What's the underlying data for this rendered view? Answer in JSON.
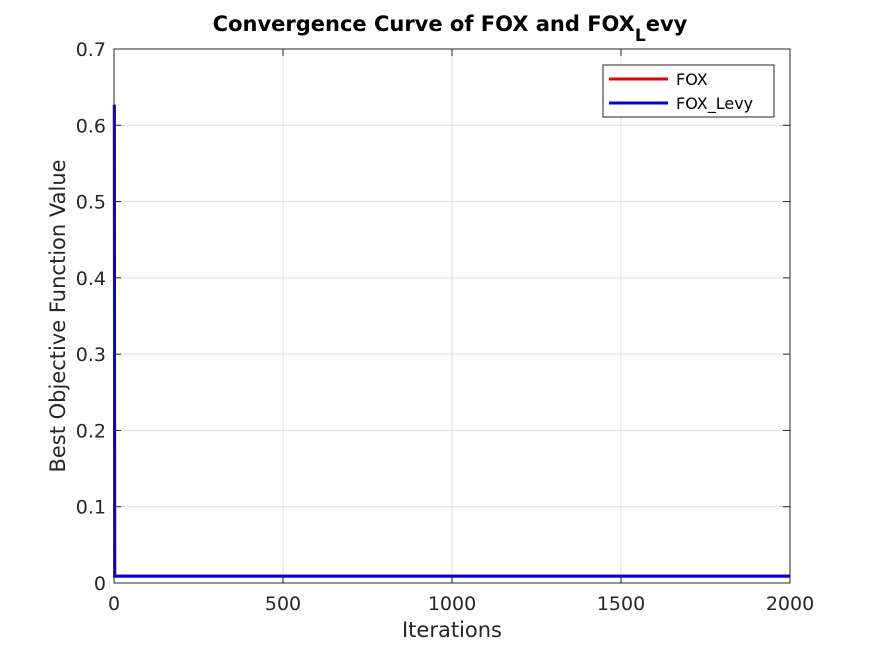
{
  "chart_data": {
    "type": "line",
    "title": "Convergence Curve of FOX and FOX",
    "title_subscript": "L",
    "title_suffix": "evy",
    "xlabel": "Iterations",
    "ylabel": "Best Objective Function Value",
    "xlim": [
      0,
      2000
    ],
    "ylim": [
      0,
      0.7
    ],
    "xticks": [
      0,
      500,
      1000,
      1500,
      2000
    ],
    "yticks": [
      0,
      0.1,
      0.2,
      0.3,
      0.4,
      0.5,
      0.6,
      0.7
    ],
    "xtick_labels": [
      "0",
      "500",
      "1000",
      "1500",
      "2000"
    ],
    "ytick_labels": [
      "0",
      "0.1",
      "0.2",
      "0.3",
      "0.4",
      "0.5",
      "0.6",
      "0.7"
    ],
    "grid": true,
    "legend_position": "top-right",
    "series": [
      {
        "name": "FOX",
        "color": "#e60000",
        "x": [
          1,
          2,
          3,
          10,
          50,
          100,
          500,
          1000,
          1500,
          2000
        ],
        "y": [
          0.627,
          0.009,
          0.009,
          0.009,
          0.009,
          0.009,
          0.009,
          0.009,
          0.009,
          0.009
        ]
      },
      {
        "name": "FOX_Levy",
        "color": "#0000e6",
        "x": [
          1,
          2,
          3,
          10,
          50,
          100,
          500,
          1000,
          1500,
          2000
        ],
        "y": [
          0.627,
          0.009,
          0.009,
          0.009,
          0.009,
          0.009,
          0.009,
          0.009,
          0.009,
          0.009
        ]
      }
    ]
  }
}
